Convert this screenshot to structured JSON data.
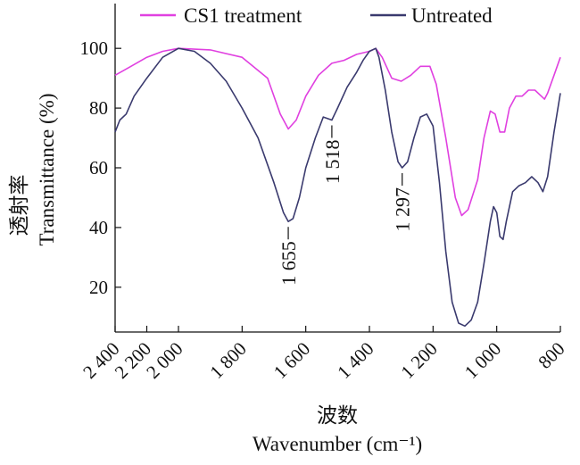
{
  "chart_data": {
    "type": "line",
    "xlabel_cn": "波数",
    "xlabel": "Wavenumber (cm⁻¹)",
    "ylabel_cn": "透射率",
    "ylabel": "Transmittance (%)",
    "xlim": [
      2400,
      800
    ],
    "ylim": [
      5,
      115
    ],
    "x_reversed": true,
    "x_ticks": [
      {
        "value": 2400,
        "label": "2 400"
      },
      {
        "value": 2200,
        "label": "2 200"
      },
      {
        "value": 2000,
        "label": "2 000"
      },
      {
        "value": 1800,
        "label": "1 800"
      },
      {
        "value": 1600,
        "label": "1 600"
      },
      {
        "value": 1400,
        "label": "1 400"
      },
      {
        "value": 1200,
        "label": "1 200"
      },
      {
        "value": 1000,
        "label": "1 000"
      },
      {
        "value": 800,
        "label": "800"
      }
    ],
    "y_ticks": [
      {
        "value": 20,
        "label": "20"
      },
      {
        "value": 40,
        "label": "40"
      },
      {
        "value": 60,
        "label": "60"
      },
      {
        "value": 80,
        "label": "80"
      },
      {
        "value": 100,
        "label": "100"
      }
    ],
    "grid": false,
    "legend_position": "top",
    "series": [
      {
        "name": "CS1 treatment",
        "color": "#e040e0",
        "points": [
          [
            2400,
            91
          ],
          [
            2300,
            94
          ],
          [
            2200,
            97
          ],
          [
            2100,
            99
          ],
          [
            2000,
            100
          ],
          [
            1900,
            99.5
          ],
          [
            1800,
            97
          ],
          [
            1720,
            90
          ],
          [
            1680,
            78
          ],
          [
            1655,
            73
          ],
          [
            1630,
            76
          ],
          [
            1600,
            84
          ],
          [
            1560,
            91
          ],
          [
            1518,
            95
          ],
          [
            1480,
            96
          ],
          [
            1440,
            98
          ],
          [
            1400,
            99
          ],
          [
            1380,
            100
          ],
          [
            1360,
            97
          ],
          [
            1330,
            90
          ],
          [
            1300,
            89
          ],
          [
            1270,
            91
          ],
          [
            1240,
            94
          ],
          [
            1210,
            94
          ],
          [
            1190,
            88
          ],
          [
            1160,
            70
          ],
          [
            1130,
            50
          ],
          [
            1110,
            44
          ],
          [
            1090,
            46
          ],
          [
            1060,
            56
          ],
          [
            1040,
            70
          ],
          [
            1020,
            79
          ],
          [
            1005,
            78
          ],
          [
            990,
            72
          ],
          [
            975,
            72
          ],
          [
            960,
            80
          ],
          [
            940,
            84
          ],
          [
            920,
            84
          ],
          [
            900,
            86
          ],
          [
            880,
            86
          ],
          [
            860,
            84
          ],
          [
            850,
            83
          ],
          [
            840,
            85
          ],
          [
            820,
            91
          ],
          [
            800,
            97
          ]
        ]
      },
      {
        "name": "Untreated",
        "color": "#3a3a6e",
        "points": [
          [
            2400,
            72
          ],
          [
            2370,
            76
          ],
          [
            2330,
            78
          ],
          [
            2280,
            84
          ],
          [
            2200,
            90
          ],
          [
            2100,
            97
          ],
          [
            2000,
            100
          ],
          [
            1950,
            99
          ],
          [
            1900,
            95
          ],
          [
            1850,
            89
          ],
          [
            1800,
            80
          ],
          [
            1750,
            70
          ],
          [
            1700,
            55
          ],
          [
            1670,
            45
          ],
          [
            1655,
            42
          ],
          [
            1640,
            43
          ],
          [
            1620,
            50
          ],
          [
            1600,
            60
          ],
          [
            1570,
            70
          ],
          [
            1545,
            77
          ],
          [
            1518,
            76
          ],
          [
            1500,
            80
          ],
          [
            1470,
            87
          ],
          [
            1440,
            92
          ],
          [
            1420,
            96
          ],
          [
            1400,
            99
          ],
          [
            1380,
            100
          ],
          [
            1370,
            97
          ],
          [
            1350,
            86
          ],
          [
            1330,
            72
          ],
          [
            1310,
            62
          ],
          [
            1297,
            60
          ],
          [
            1280,
            62
          ],
          [
            1260,
            70
          ],
          [
            1240,
            77
          ],
          [
            1220,
            78
          ],
          [
            1200,
            74
          ],
          [
            1180,
            55
          ],
          [
            1160,
            32
          ],
          [
            1140,
            15
          ],
          [
            1120,
            8
          ],
          [
            1100,
            7
          ],
          [
            1080,
            9
          ],
          [
            1060,
            15
          ],
          [
            1040,
            28
          ],
          [
            1020,
            42
          ],
          [
            1010,
            47
          ],
          [
            1000,
            45
          ],
          [
            990,
            37
          ],
          [
            980,
            36
          ],
          [
            970,
            42
          ],
          [
            950,
            52
          ],
          [
            930,
            54
          ],
          [
            910,
            55
          ],
          [
            890,
            57
          ],
          [
            870,
            55
          ],
          [
            855,
            52
          ],
          [
            840,
            57
          ],
          [
            820,
            72
          ],
          [
            800,
            85
          ]
        ]
      }
    ],
    "annotations": [
      {
        "text": "1 655",
        "x": 1655,
        "y": 42
      },
      {
        "text": "1 518",
        "x": 1518,
        "y": 76
      },
      {
        "text": "1 297",
        "x": 1297,
        "y": 60
      }
    ]
  }
}
